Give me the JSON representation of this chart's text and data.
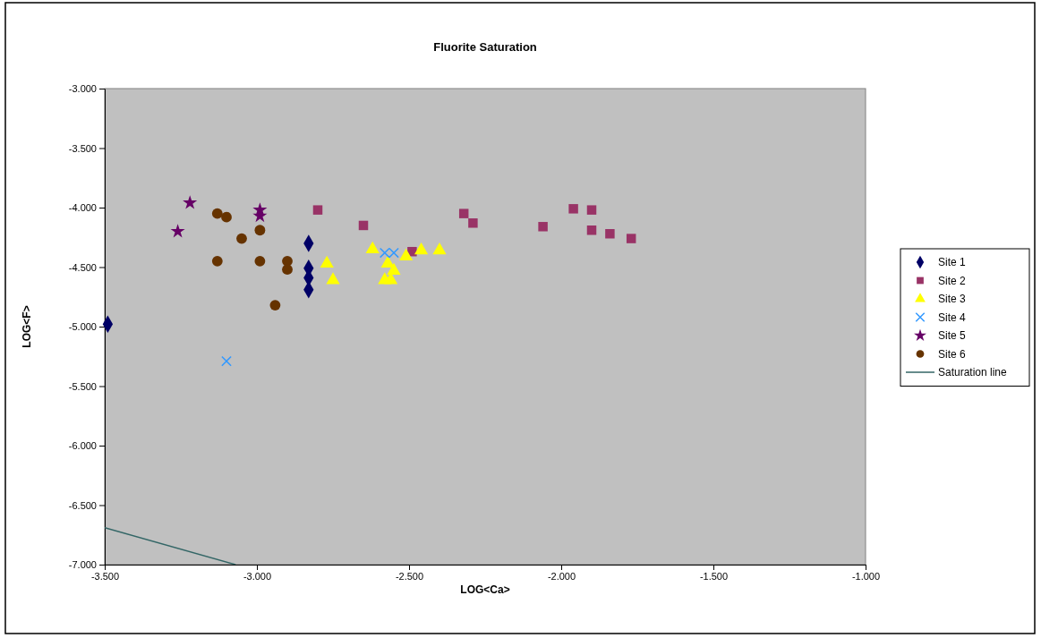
{
  "chart_data": {
    "type": "scatter",
    "title": "Fluorite Saturation",
    "xlabel": "LOG<Ca>",
    "ylabel": "LOG<F>",
    "xlim": [
      -3.5,
      -1.0
    ],
    "ylim": [
      -7.0,
      -3.0
    ],
    "xticks": [
      {
        "value": -3.5,
        "label": "-3.500"
      },
      {
        "value": -3.0,
        "label": "-3.000"
      },
      {
        "value": -2.5,
        "label": "-2.500"
      },
      {
        "value": -2.0,
        "label": "-2.000"
      },
      {
        "value": -1.5,
        "label": "-1.500"
      },
      {
        "value": -1.0,
        "label": "-1.000"
      }
    ],
    "yticks": [
      {
        "value": -7.0,
        "label": "-7.000"
      },
      {
        "value": -6.5,
        "label": "-6.500"
      },
      {
        "value": -6.0,
        "label": "-6.000"
      },
      {
        "value": -5.5,
        "label": "-5.500"
      },
      {
        "value": -5.0,
        "label": "-5.000"
      },
      {
        "value": -4.5,
        "label": "-4.500"
      },
      {
        "value": -4.0,
        "label": "-4.000"
      },
      {
        "value": -3.5,
        "label": "-3.500"
      },
      {
        "value": -3.0,
        "label": "-3.000"
      }
    ],
    "grid": false,
    "legend": "right",
    "series": [
      {
        "name": "Site 1",
        "color": "#000066",
        "marker": "diamond",
        "x": [
          -3.49,
          -2.83,
          -2.83,
          -2.83,
          -2.83
        ],
        "values": [
          -4.98,
          -4.3,
          -4.51,
          -4.59,
          -4.69
        ]
      },
      {
        "name": "Site 2",
        "color": "#993366",
        "marker": "square",
        "x": [
          -2.8,
          -2.65,
          -2.49,
          -2.32,
          -2.29,
          -2.06,
          -1.96,
          -1.9,
          -1.9,
          -1.84,
          -1.77
        ],
        "values": [
          -4.02,
          -4.15,
          -4.37,
          -4.05,
          -4.13,
          -4.16,
          -4.01,
          -4.02,
          -4.19,
          -4.22,
          -4.26
        ]
      },
      {
        "name": "Site 3",
        "color": "#ffff00",
        "marker": "triangle",
        "x": [
          -2.77,
          -2.75,
          -2.62,
          -2.51,
          -2.46,
          -2.4,
          -2.57,
          -2.55,
          -2.58,
          -2.56
        ],
        "values": [
          -4.47,
          -4.61,
          -4.35,
          -4.41,
          -4.36,
          -4.36,
          -4.47,
          -4.53,
          -4.61,
          -4.61
        ]
      },
      {
        "name": "Site 4",
        "color": "#3399ff",
        "marker": "cross",
        "x": [
          -3.1,
          -2.58,
          -2.55
        ],
        "values": [
          -5.29,
          -4.38,
          -4.38
        ]
      },
      {
        "name": "Site 5",
        "color": "#660066",
        "marker": "star",
        "x": [
          -3.22,
          -3.26,
          -2.99,
          -2.99
        ],
        "values": [
          -3.96,
          -4.2,
          -4.02,
          -4.07
        ]
      },
      {
        "name": "Site 6",
        "color": "#663300",
        "marker": "circle",
        "x": [
          -3.13,
          -3.1,
          -3.05,
          -2.99,
          -3.13,
          -2.99,
          -2.9,
          -2.9,
          -2.94
        ],
        "values": [
          -4.05,
          -4.08,
          -4.26,
          -4.19,
          -4.45,
          -4.45,
          -4.45,
          -4.52,
          -4.82
        ]
      },
      {
        "name": "Saturation line",
        "type": "line",
        "color": "#336666",
        "marker": "none",
        "line_style": "solid",
        "x": [
          -3.5,
          -3.07
        ],
        "values": [
          -6.69,
          -7.0
        ]
      }
    ]
  }
}
